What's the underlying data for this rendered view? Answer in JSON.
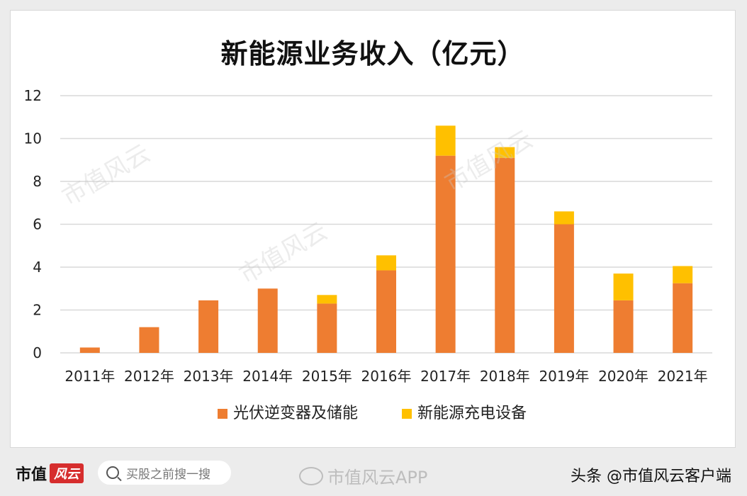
{
  "chart_data": {
    "type": "bar",
    "stacked": true,
    "title": "新能源业务收入（亿元）",
    "categories": [
      "2011年",
      "2012年",
      "2013年",
      "2014年",
      "2015年",
      "2016年",
      "2017年",
      "2018年",
      "2019年",
      "2020年",
      "2021年"
    ],
    "series": [
      {
        "name": "光伏逆变器及储能",
        "color": "#ee7d31",
        "values": [
          0.25,
          1.2,
          2.45,
          3.0,
          2.3,
          3.85,
          9.2,
          9.1,
          6.0,
          2.45,
          3.25
        ]
      },
      {
        "name": "新能源充电设备",
        "color": "#ffc000",
        "values": [
          0,
          0,
          0,
          0,
          0.4,
          0.7,
          1.4,
          0.5,
          0.6,
          1.25,
          0.8
        ]
      }
    ],
    "ylim": [
      0,
      12
    ],
    "yticks": [
      0,
      2,
      4,
      6,
      8,
      10,
      12
    ],
    "grid": true,
    "legend_position": "bottom"
  },
  "footer": {
    "brand_name": "市值",
    "brand_badge": "风云",
    "search_placeholder": "买股之前搜一搜",
    "weibo_text": "市值风云APP",
    "author_text": "头条 @市值风云客户端"
  },
  "watermark_text": "市值风云"
}
